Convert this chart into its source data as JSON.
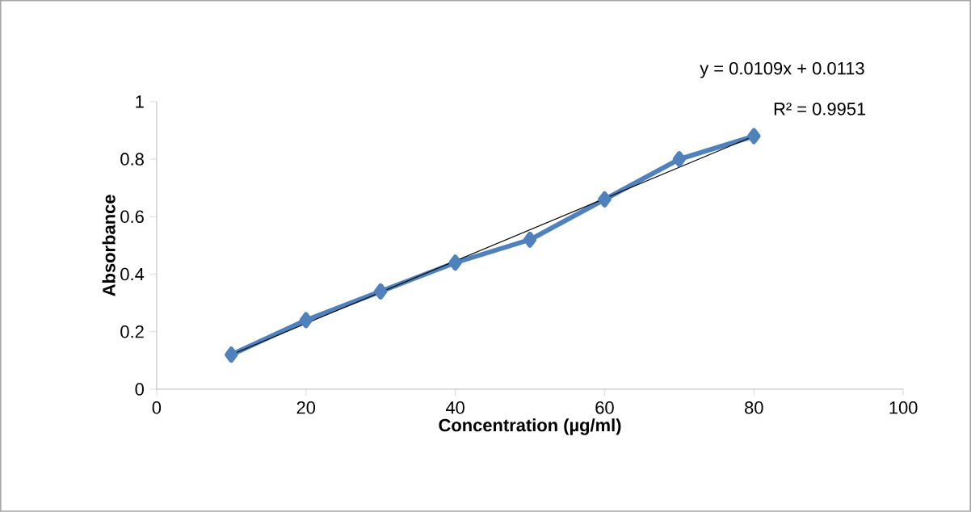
{
  "chart_data": {
    "type": "line",
    "xlabel": "Concentration (µg/ml)",
    "ylabel": "Absorbance",
    "annotations": [
      "y = 0.0109x + 0.0113",
      "R² = 0.9951"
    ],
    "series": [
      {
        "color": "#4f81bd",
        "marker": "diamond",
        "x": [
          10,
          20,
          30,
          40,
          50,
          60,
          70,
          80
        ],
        "values": [
          0.12,
          0.24,
          0.34,
          0.44,
          0.52,
          0.66,
          0.8,
          0.88
        ]
      },
      {
        "type": "line",
        "color": "#000000",
        "marker": "none",
        "x": [
          10,
          80
        ],
        "values": [
          0.12,
          0.88
        ]
      }
    ],
    "xlim": [
      0,
      100
    ],
    "xticks": [
      0,
      20,
      40,
      60,
      80,
      100
    ],
    "ylim": [
      0,
      1
    ],
    "yticks": [
      0,
      0.2,
      0.4,
      0.6,
      0.8,
      1
    ],
    "grid": false
  }
}
